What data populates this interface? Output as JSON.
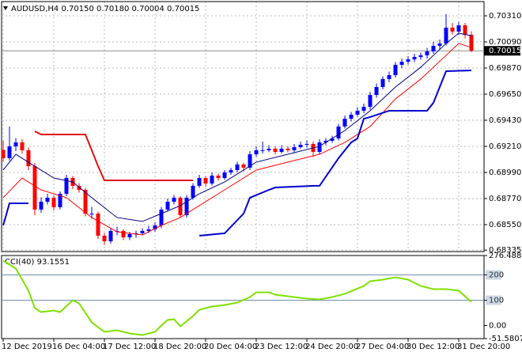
{
  "chart_data": [
    {
      "type": "candlestick",
      "title": "AUDUSD,H4  0.70150 0.70180 0.70004 0.70015",
      "categories": [
        "12 Dec 2019",
        null,
        null,
        null,
        null,
        null,
        null,
        null,
        "16 Dec 04:00",
        null,
        null,
        null,
        null,
        null,
        null,
        null,
        "17 Dec 12:00",
        null,
        null,
        null,
        null,
        null,
        null,
        null,
        "18 Dec 20:00",
        null,
        null,
        null,
        null,
        null,
        null,
        null,
        "20 Dec 04:00",
        null,
        null,
        null,
        null,
        null,
        null,
        null,
        "23 Dec 12:00",
        null,
        null,
        null,
        null,
        null,
        null,
        null,
        "24 Dec 20:00",
        null,
        null,
        null,
        null,
        null,
        null,
        null,
        "27 Dec 04:00",
        null,
        null,
        null,
        null,
        null,
        null,
        null,
        "30 Dec 12:00",
        null,
        null,
        null,
        null,
        null,
        null,
        null,
        "31 Dec 20:00",
        null,
        null
      ],
      "ohlc": [
        [
          0.6918,
          0.6926,
          0.6908,
          0.6911
        ],
        [
          0.6911,
          0.69377,
          0.6909,
          0.6921
        ],
        [
          0.6921,
          0.6928,
          0.6917,
          0.69243
        ],
        [
          0.69243,
          0.6927,
          0.6915,
          0.69177
        ],
        [
          0.69177,
          0.692,
          0.6901,
          0.69043
        ],
        [
          0.69043,
          0.6907,
          0.6863,
          0.68677
        ],
        [
          0.68677,
          0.6878,
          0.6865,
          0.68743
        ],
        [
          0.68743,
          0.6881,
          0.6872,
          0.68777
        ],
        [
          0.68777,
          0.688,
          0.6867,
          0.68697
        ],
        [
          0.68697,
          0.6883,
          0.6868,
          0.6881
        ],
        [
          0.6881,
          0.6897,
          0.6879,
          0.68943
        ],
        [
          0.68943,
          0.6896,
          0.6885,
          0.68877
        ],
        [
          0.68877,
          0.689,
          0.6882,
          0.68843
        ],
        [
          0.68843,
          0.6886,
          0.6862,
          0.68643
        ],
        [
          0.68643,
          0.687,
          0.686,
          0.68643
        ],
        [
          0.68643,
          0.6866,
          0.6843,
          0.68457
        ],
        [
          0.68457,
          0.6848,
          0.6838,
          0.6841
        ],
        [
          0.6841,
          0.6852,
          0.6839,
          0.68497
        ],
        [
          0.68497,
          0.6853,
          0.6846,
          0.68497
        ],
        [
          0.68497,
          0.6851,
          0.6842,
          0.68443
        ],
        [
          0.68443,
          0.6849,
          0.6842,
          0.6847
        ],
        [
          0.6847,
          0.685,
          0.6844,
          0.68477
        ],
        [
          0.68477,
          0.6852,
          0.6846,
          0.68497
        ],
        [
          0.68497,
          0.6854,
          0.6848,
          0.6851
        ],
        [
          0.6851,
          0.6857,
          0.6849,
          0.68543
        ],
        [
          0.68543,
          0.687,
          0.6852,
          0.68677
        ],
        [
          0.68677,
          0.6877,
          0.6866,
          0.68743
        ],
        [
          0.68743,
          0.688,
          0.6872,
          0.68777
        ],
        [
          0.68777,
          0.6879,
          0.6861,
          0.6863
        ],
        [
          0.6863,
          0.688,
          0.6861,
          0.68777
        ],
        [
          0.68777,
          0.689,
          0.6876,
          0.68877
        ],
        [
          0.68877,
          0.6897,
          0.6886,
          0.68943
        ],
        [
          0.68943,
          0.6896,
          0.6887,
          0.68897
        ],
        [
          0.68897,
          0.6899,
          0.6888,
          0.68963
        ],
        [
          0.68963,
          0.6898,
          0.6892,
          0.68943
        ],
        [
          0.68943,
          0.6901,
          0.6893,
          0.6899
        ],
        [
          0.6899,
          0.6903,
          0.6897,
          0.6901
        ],
        [
          0.6901,
          0.6908,
          0.6899,
          0.69057
        ],
        [
          0.69057,
          0.6907,
          0.69,
          0.6903
        ],
        [
          0.6903,
          0.6917,
          0.6901,
          0.69143
        ],
        [
          0.69143,
          0.6921,
          0.6912,
          0.69177
        ],
        [
          0.69177,
          0.6925,
          0.6915,
          0.69177
        ],
        [
          0.69177,
          0.6922,
          0.6916,
          0.6919
        ],
        [
          0.6919,
          0.6921,
          0.6914,
          0.69163
        ],
        [
          0.69163,
          0.6922,
          0.6915,
          0.6919
        ],
        [
          0.6919,
          0.6921,
          0.6916,
          0.69177
        ],
        [
          0.69177,
          0.6923,
          0.6916,
          0.69203
        ],
        [
          0.69203,
          0.6925,
          0.6919,
          0.69223
        ],
        [
          0.69223,
          0.6926,
          0.692,
          0.6923
        ],
        [
          0.6923,
          0.6925,
          0.6912,
          0.69163
        ],
        [
          0.69163,
          0.6927,
          0.6914,
          0.69243
        ],
        [
          0.69243,
          0.6928,
          0.6922,
          0.69257
        ],
        [
          0.69257,
          0.693,
          0.6924,
          0.69277
        ],
        [
          0.69277,
          0.694,
          0.6926,
          0.69377
        ],
        [
          0.69377,
          0.6947,
          0.6936,
          0.69443
        ],
        [
          0.69443,
          0.695,
          0.6942,
          0.69477
        ],
        [
          0.69477,
          0.6954,
          0.6946,
          0.6951
        ],
        [
          0.6951,
          0.6957,
          0.6949,
          0.69543
        ],
        [
          0.69543,
          0.6967,
          0.6952,
          0.69643
        ],
        [
          0.69643,
          0.6974,
          0.6962,
          0.6971
        ],
        [
          0.6971,
          0.698,
          0.6969,
          0.69777
        ],
        [
          0.69777,
          0.6984,
          0.6975,
          0.6981
        ],
        [
          0.6981,
          0.6992,
          0.6979,
          0.69897
        ],
        [
          0.69897,
          0.6995,
          0.6987,
          0.69923
        ],
        [
          0.69923,
          0.6997,
          0.699,
          0.69943
        ],
        [
          0.69943,
          0.6999,
          0.6992,
          0.69963
        ],
        [
          0.69963,
          0.7,
          0.6994,
          0.69977
        ],
        [
          0.69977,
          0.7004,
          0.6995,
          0.7001
        ],
        [
          0.7001,
          0.7009,
          0.6999,
          0.70057
        ],
        [
          0.70057,
          0.7011,
          0.7003,
          0.70077
        ],
        [
          0.70077,
          0.70323,
          0.7006,
          0.7021
        ],
        [
          0.7021,
          0.7025,
          0.7015,
          0.70177
        ],
        [
          0.70177,
          0.7026,
          0.7015,
          0.7023
        ],
        [
          0.7023,
          0.7025,
          0.7012,
          0.7015
        ],
        [
          0.7015,
          0.7018,
          0.70004,
          0.70015
        ]
      ],
      "up_color": "#0000ff",
      "down_color": "#ff0000",
      "series": [
        {
          "color": "#000080",
          "line_width": 1,
          "x": [
            0,
            2,
            5,
            8,
            11,
            14,
            18,
            22,
            25,
            28,
            31,
            35,
            40,
            45,
            50,
            54,
            58,
            62,
            66,
            70,
            72,
            74
          ],
          "values": [
            0.6901,
            0.69143,
            0.69043,
            0.68943,
            0.6891,
            0.68777,
            0.6861,
            0.68577,
            0.68643,
            0.6871,
            0.6881,
            0.6891,
            0.69077,
            0.69143,
            0.6921,
            0.69343,
            0.6951,
            0.6971,
            0.69877,
            0.70077,
            0.70163,
            0.70143
          ]
        },
        {
          "color": "#ff0000",
          "line_width": 1,
          "x": [
            0,
            3,
            6,
            10,
            14,
            18,
            22,
            25,
            28,
            31,
            35,
            40,
            45,
            50,
            54,
            58,
            62,
            66,
            70,
            72,
            74
          ],
          "values": [
            0.68777,
            0.68943,
            0.68843,
            0.68777,
            0.6861,
            0.6849,
            0.68463,
            0.68543,
            0.6861,
            0.6871,
            0.68843,
            0.6901,
            0.69077,
            0.69143,
            0.69243,
            0.69377,
            0.6961,
            0.69777,
            0.69977,
            0.70077,
            0.70043
          ]
        },
        {
          "color": "#e01010",
          "line_width": 2,
          "x": [
            5,
            6,
            13,
            14,
            15,
            16,
            17,
            30
          ],
          "values": [
            0.69337,
            0.6931,
            0.6931,
            0.69177,
            0.69043,
            0.68923,
            0.68923,
            0.68923
          ]
        },
        {
          "color": "#0000cd",
          "line_width": 2,
          "x": [
            0,
            1,
            4,
            18,
            31,
            35,
            38,
            39,
            42,
            43,
            49,
            50,
            53,
            55,
            56,
            57,
            58,
            61,
            67,
            68,
            70,
            74
          ],
          "values": [
            0.68543,
            0.6873,
            0.6873,
            null,
            0.68457,
            0.68477,
            0.68643,
            0.68777,
            0.68843,
            0.68863,
            0.68877,
            0.68877,
            0.6911,
            0.69243,
            0.69277,
            0.69443,
            0.69457,
            0.6951,
            0.6951,
            0.69577,
            0.69843,
            0.6985
          ]
        }
      ],
      "ylim": [
        0.68323,
        0.7043
      ],
      "yticks": [
        {
          "value": 0.7031,
          "label": "0.70310"
        },
        {
          "value": 0.7009,
          "label": "0.70090"
        },
        {
          "value": 0.6987,
          "label": "0.69870"
        },
        {
          "value": 0.6965,
          "label": "0.69650"
        },
        {
          "value": 0.6943,
          "label": "0.69430"
        },
        {
          "value": 0.6921,
          "label": "0.69210"
        },
        {
          "value": 0.6899,
          "label": "0.68990"
        },
        {
          "value": 0.6877,
          "label": "0.68770"
        },
        {
          "value": 0.6855,
          "label": "0.68550"
        },
        0.68335
      ],
      "current_price": 0.70015,
      "grid": true
    },
    {
      "type": "line",
      "title": "CCI(40) 93.1551",
      "x": [
        0,
        2,
        4,
        5,
        6,
        8,
        9,
        11,
        12,
        14,
        16,
        18,
        20,
        22,
        24,
        25,
        26,
        27,
        28,
        30,
        31,
        33,
        35,
        37,
        39,
        40,
        42,
        43,
        46,
        48,
        50,
        52,
        54,
        57,
        58,
        60,
        62,
        64,
        66,
        68,
        70,
        72,
        74
      ],
      "values": [
        256.3,
        225,
        137.5,
        68.8,
        53.1,
        59.4,
        53.1,
        100,
        87.5,
        12.5,
        -25,
        -18.8,
        -31.3,
        -37.5,
        -25,
        0,
        21.9,
        25,
        -3.1,
        37.5,
        62.5,
        75,
        81.3,
        90.6,
        112.5,
        131.3,
        131.3,
        121.9,
        112.5,
        106.3,
        103.1,
        112.5,
        125,
        156.3,
        175,
        181.3,
        190.6,
        181.3,
        156.3,
        143.8,
        143.8,
        137.5,
        93.1551
      ],
      "color": "#7fe000",
      "ylim": [
        -51.5807,
        276.488
      ],
      "yticks": [
        276.488,
        200,
        100,
        {
          "value": 0,
          "label": "0.00"
        },
        -51.5807
      ],
      "levels": [
        200,
        100
      ]
    }
  ]
}
